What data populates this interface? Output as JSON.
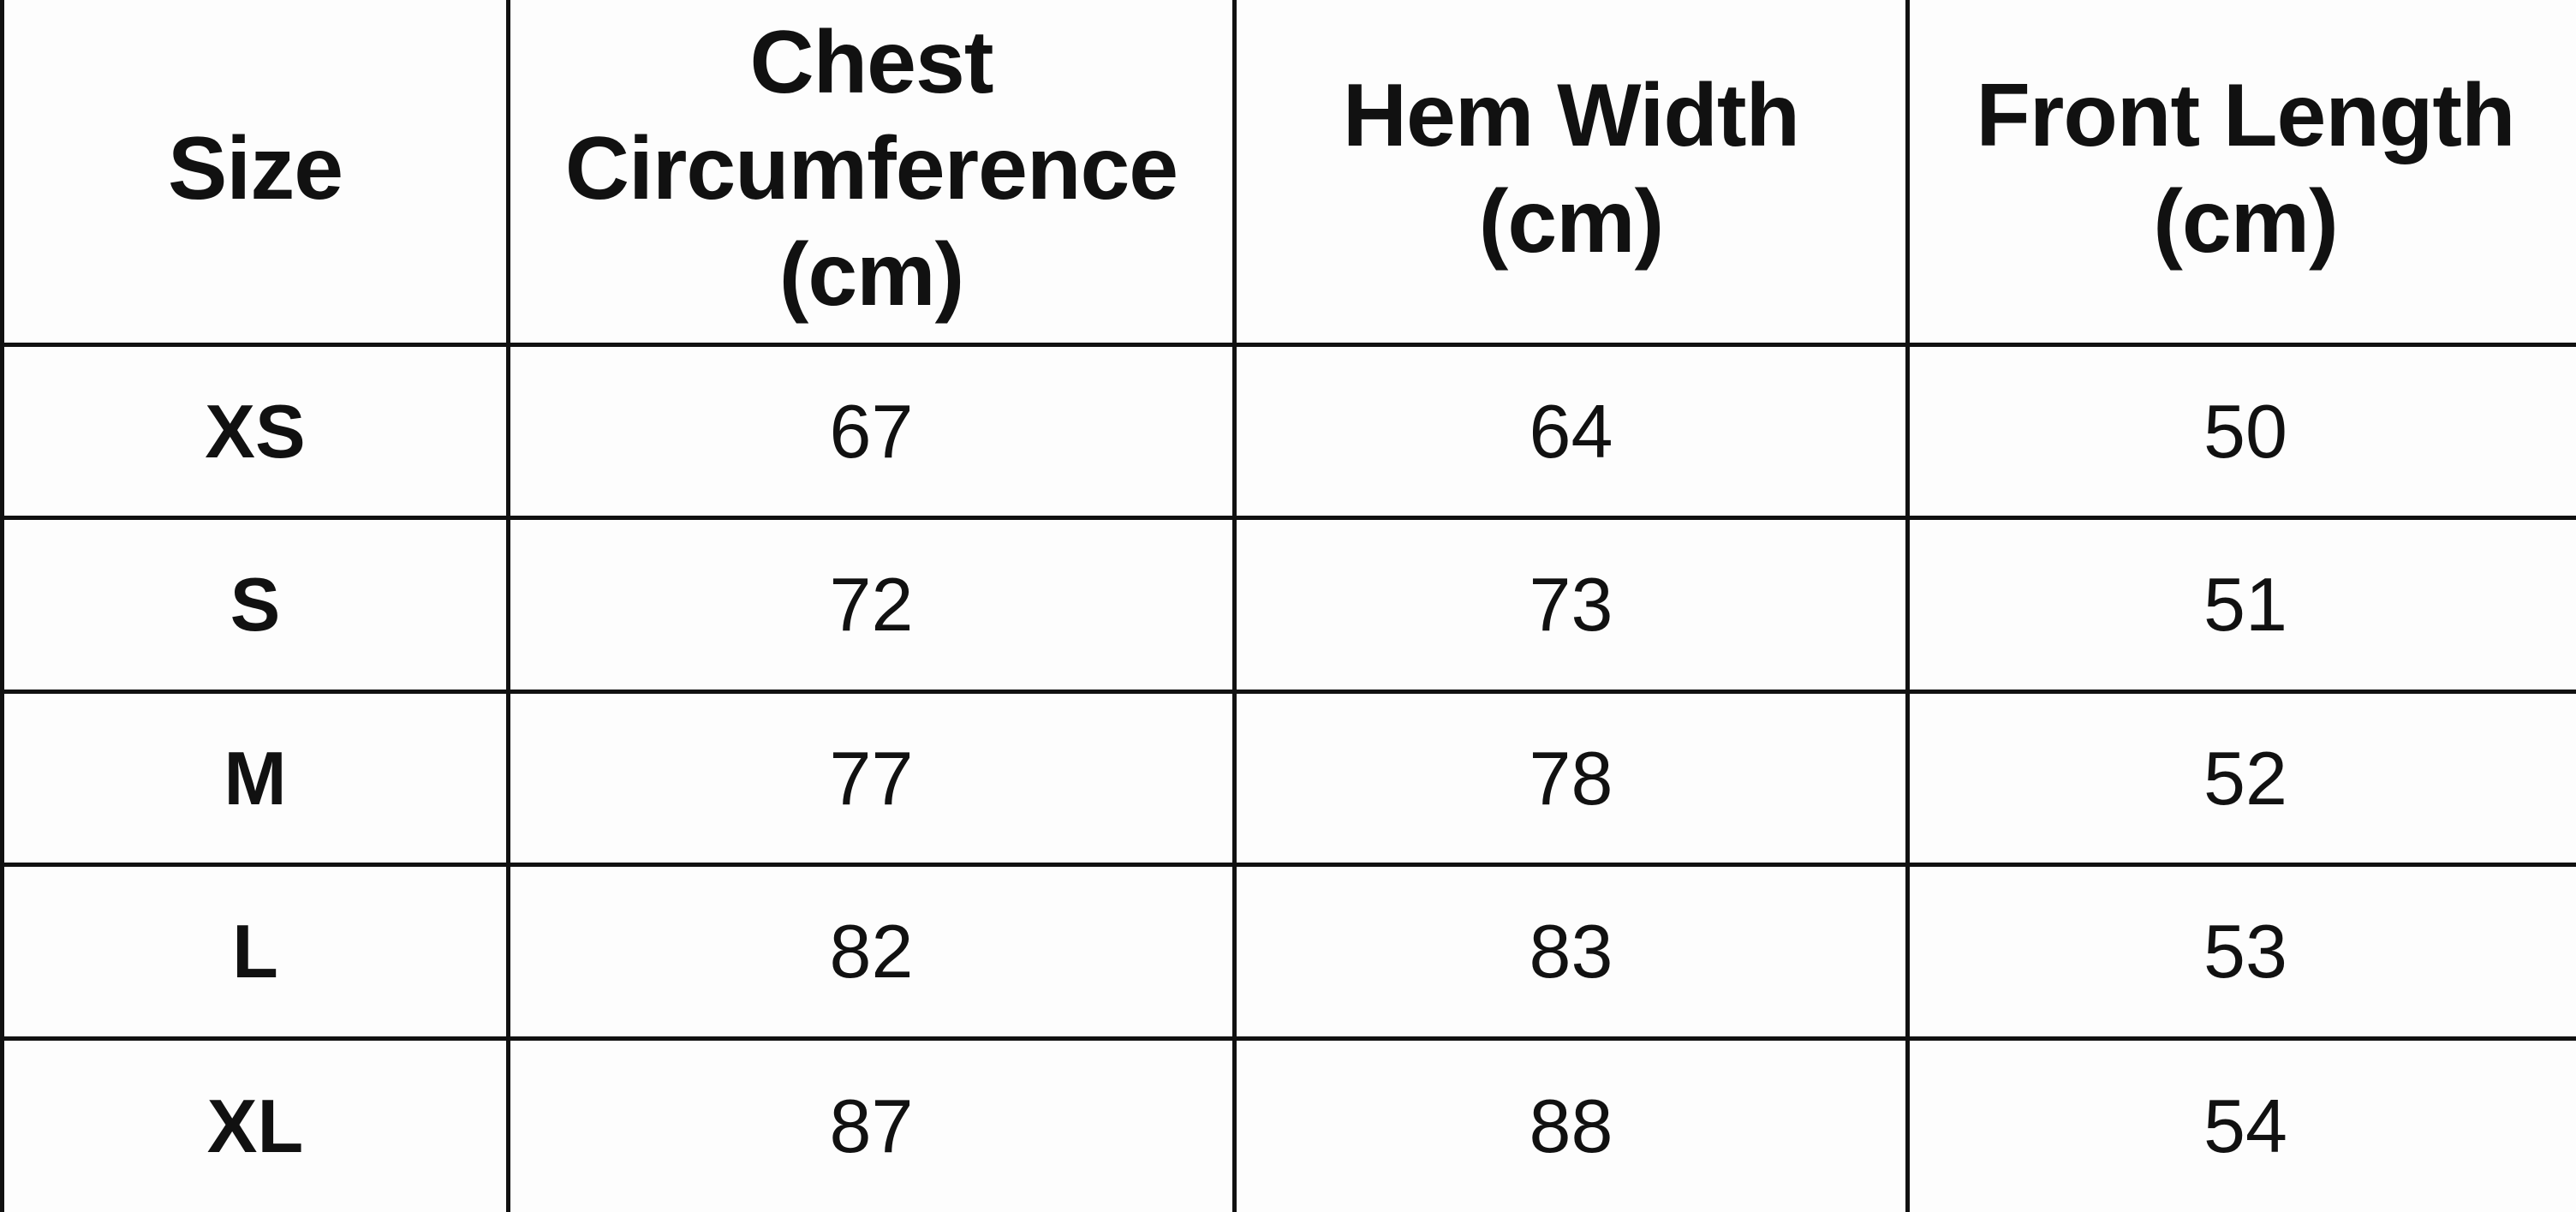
{
  "table": {
    "headers": [
      "Size",
      "Chest Circumference (cm)",
      "Hem Width (cm)",
      "Front Length (cm)"
    ],
    "rows": [
      {
        "size": "XS",
        "chest": "67",
        "hem": "64",
        "length": "50"
      },
      {
        "size": "S",
        "chest": "72",
        "hem": "73",
        "length": "51"
      },
      {
        "size": "M",
        "chest": "77",
        "hem": "78",
        "length": "52"
      },
      {
        "size": "L",
        "chest": "82",
        "hem": "83",
        "length": "53"
      },
      {
        "size": "XL",
        "chest": "87",
        "hem": "88",
        "length": "54"
      }
    ]
  }
}
